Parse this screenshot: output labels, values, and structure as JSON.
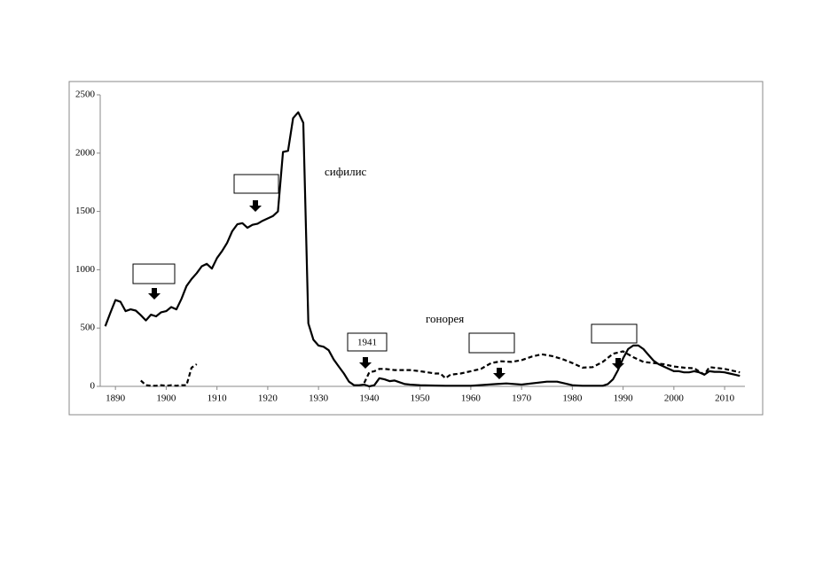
{
  "chart_data": {
    "type": "line",
    "xlim": [
      1887,
      2014
    ],
    "xticks": [
      1890,
      1900,
      1910,
      1920,
      1930,
      1940,
      1950,
      1960,
      1970,
      1980,
      1990,
      2000,
      2010
    ],
    "ylim": [
      0,
      2500
    ],
    "yticks": [
      0,
      500,
      1000,
      1500,
      2000,
      2500
    ],
    "grid": false,
    "annotations": [
      "1941"
    ],
    "series": [
      {
        "name": "сифилис",
        "color": "#000000",
        "dash": false,
        "x": [
          1888,
          1889,
          1890,
          1891,
          1892,
          1893,
          1894,
          1895,
          1896,
          1897,
          1898,
          1899,
          1900,
          1901,
          1902,
          1903,
          1904,
          1905,
          1906,
          1907,
          1908,
          1909,
          1910,
          1911,
          1912,
          1913,
          1914,
          1915,
          1916,
          1917,
          1918,
          1919,
          1920,
          1921,
          1922,
          1923,
          1924,
          1925,
          1926,
          1927,
          1928,
          1929,
          1930,
          1931,
          1932,
          1933,
          1934,
          1935,
          1936,
          1937,
          1938,
          1939,
          1940,
          1941,
          1942,
          1943,
          1944,
          1945,
          1946,
          1947,
          1948,
          1950,
          1955,
          1960,
          1965,
          1967,
          1970,
          1975,
          1977,
          1980,
          1982,
          1986,
          1987,
          1988,
          1989,
          1990,
          1991,
          1992,
          1993,
          1994,
          1995,
          1996,
          1997,
          1998,
          1999,
          2000,
          2001,
          2002,
          2003,
          2004,
          2005,
          2006,
          2007,
          2008,
          2009,
          2010,
          2011,
          2012,
          2013
        ],
        "values": [
          515,
          630,
          740,
          725,
          645,
          660,
          650,
          610,
          565,
          615,
          600,
          635,
          645,
          680,
          660,
          750,
          860,
          920,
          970,
          1030,
          1050,
          1010,
          1100,
          1160,
          1230,
          1330,
          1390,
          1400,
          1360,
          1385,
          1395,
          1420,
          1440,
          1460,
          1500,
          2010,
          2020,
          2300,
          2350,
          2260,
          540,
          400,
          350,
          340,
          310,
          230,
          170,
          110,
          40,
          10,
          10,
          15,
          0,
          10,
          70,
          60,
          45,
          50,
          35,
          20,
          15,
          10,
          5,
          5,
          20,
          25,
          15,
          40,
          40,
          10,
          5,
          5,
          20,
          60,
          140,
          240,
          320,
          350,
          350,
          320,
          270,
          220,
          190,
          170,
          150,
          130,
          130,
          120,
          120,
          130,
          120,
          100,
          130,
          125,
          125,
          120,
          110,
          100,
          90
        ]
      },
      {
        "name": "гонорея",
        "color": "#000000",
        "dash": true,
        "x": [
          1895,
          1896,
          1897,
          1898,
          1899,
          1900,
          1901,
          1902,
          1903,
          1904,
          1905,
          1906,
          1920,
          1939,
          1940,
          1941,
          1942,
          1943,
          1945,
          1948,
          1950,
          1953,
          1954,
          1955,
          1956,
          1958,
          1960,
          1962,
          1964,
          1966,
          1968,
          1970,
          1972,
          1974,
          1976,
          1978,
          1980,
          1982,
          1984,
          1986,
          1988,
          1990,
          1992,
          1994,
          1996,
          1998,
          2000,
          2002,
          2004,
          2006,
          2007,
          2010,
          2013
        ],
        "values": [
          50,
          10,
          5,
          5,
          10,
          5,
          10,
          5,
          10,
          10,
          160,
          190,
          null,
          30,
          120,
          130,
          150,
          150,
          140,
          140,
          130,
          110,
          110,
          70,
          100,
          110,
          130,
          150,
          200,
          215,
          210,
          225,
          255,
          275,
          260,
          235,
          200,
          160,
          165,
          210,
          280,
          300,
          250,
          210,
          200,
          190,
          170,
          160,
          155,
          100,
          165,
          150,
          120
        ]
      }
    ]
  }
}
